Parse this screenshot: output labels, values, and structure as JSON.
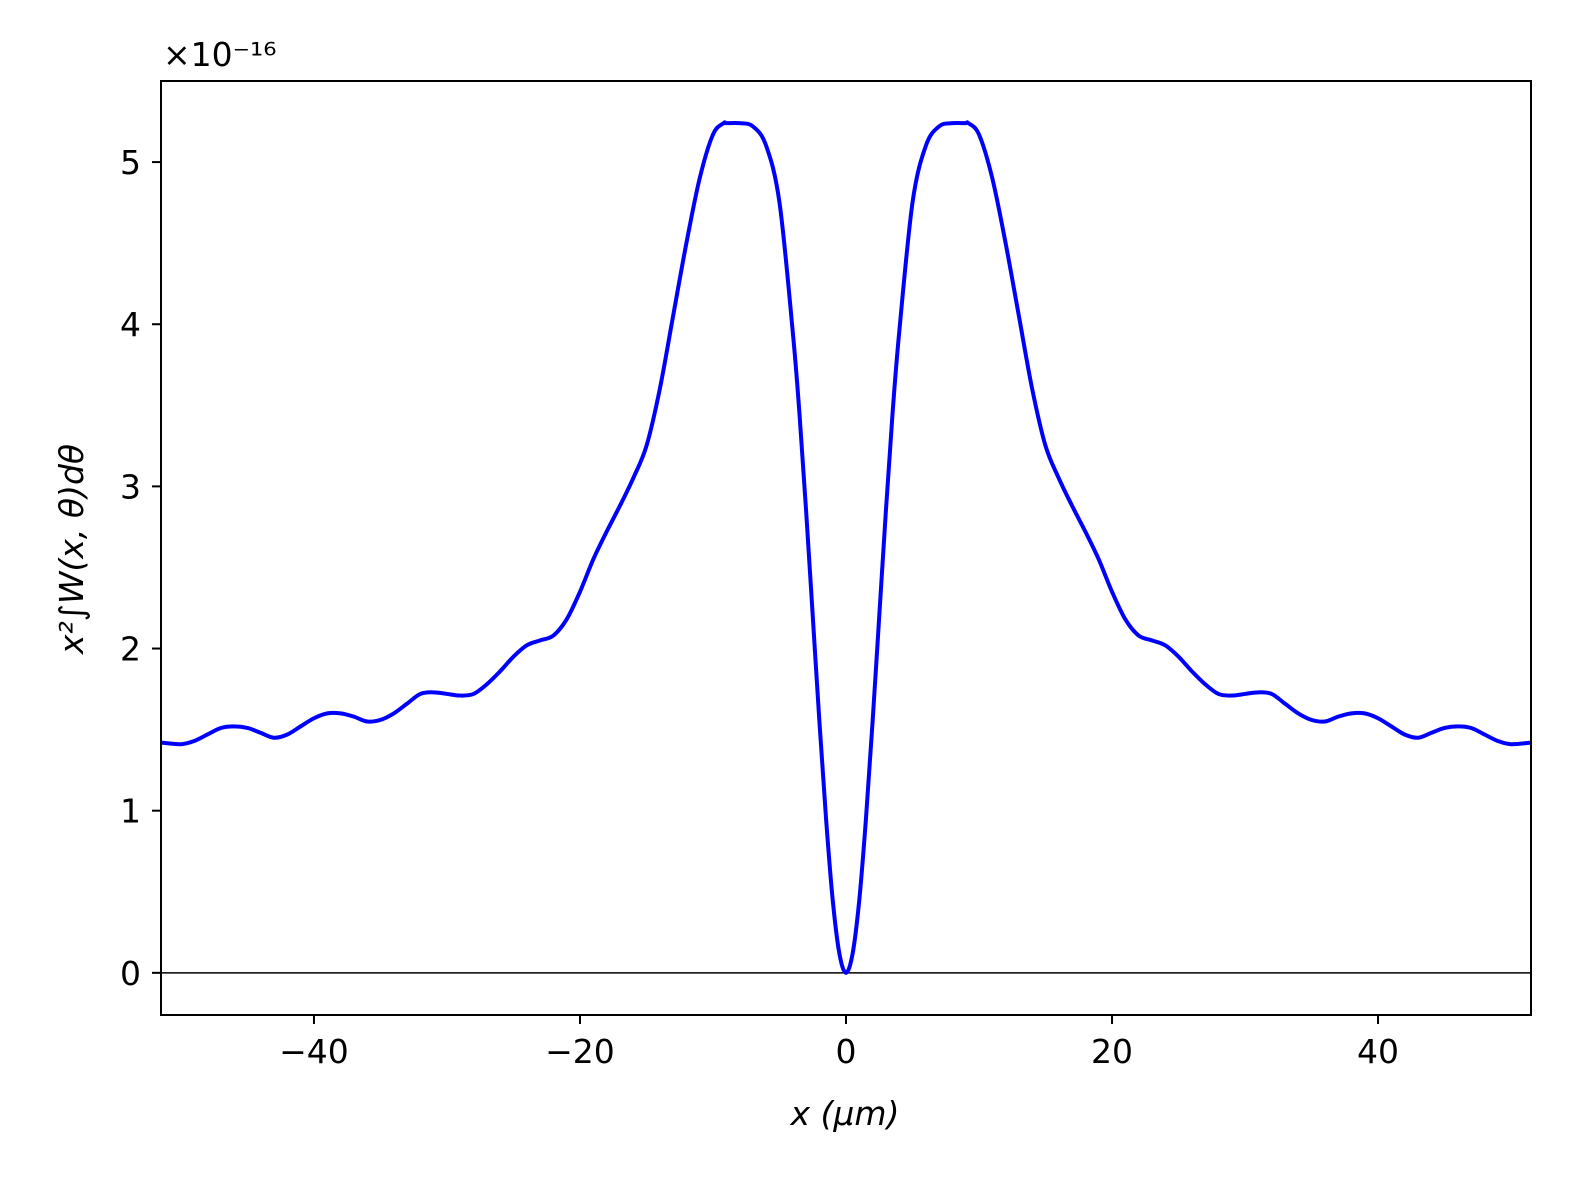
{
  "chart_data": {
    "type": "line",
    "title": "",
    "xlabel": "x  (μm)",
    "ylabel": "x²∫W(x, θ)dθ",
    "y_scale_label": "×10⁻¹⁶",
    "xlim": [
      -51.5,
      51.5
    ],
    "ylim": [
      -0.26,
      5.5
    ],
    "x_ticks": [
      -40,
      -20,
      0,
      20,
      40
    ],
    "x_tick_labels": [
      "−40",
      "−20",
      "0",
      "20",
      "40"
    ],
    "y_ticks": [
      0,
      1,
      2,
      3,
      4,
      5
    ],
    "y_tick_labels": [
      "0",
      "1",
      "2",
      "3",
      "4",
      "5"
    ],
    "grid": false,
    "reference_line_y": 0,
    "series": [
      {
        "color": "#0000ff",
        "x": [
          0,
          0.5,
          1,
          1.5,
          2,
          2.5,
          3,
          3.5,
          4,
          5,
          6,
          7,
          8,
          9,
          9.2,
          10,
          11,
          12,
          13,
          14,
          15,
          16,
          17,
          18,
          19,
          20,
          21,
          22,
          23,
          24,
          25,
          26,
          27,
          28,
          29,
          30,
          31,
          32,
          33,
          34,
          35,
          36,
          37,
          38,
          39,
          40,
          41,
          42,
          43,
          44,
          45,
          46,
          47,
          48,
          49,
          50,
          51.5
        ],
        "y": [
          0.0,
          0.12,
          0.45,
          0.95,
          1.55,
          2.2,
          2.85,
          3.45,
          3.95,
          4.75,
          5.1,
          5.22,
          5.24,
          5.24,
          5.24,
          5.17,
          4.9,
          4.5,
          4.05,
          3.6,
          3.25,
          3.05,
          2.88,
          2.72,
          2.55,
          2.35,
          2.18,
          2.08,
          2.05,
          2.02,
          1.95,
          1.86,
          1.78,
          1.72,
          1.71,
          1.72,
          1.73,
          1.72,
          1.66,
          1.6,
          1.56,
          1.55,
          1.58,
          1.6,
          1.6,
          1.57,
          1.52,
          1.47,
          1.45,
          1.48,
          1.51,
          1.52,
          1.51,
          1.47,
          1.43,
          1.41,
          1.42
        ],
        "mirror_about_zero": true
      }
    ]
  }
}
